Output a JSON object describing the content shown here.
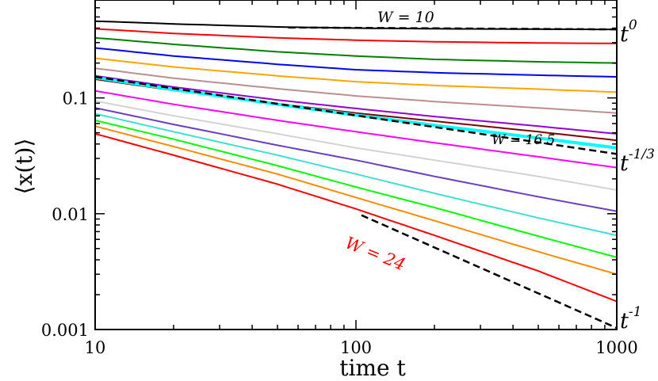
{
  "chart_data": {
    "type": "line",
    "xscale": "log",
    "yscale": "log",
    "xlim": [
      10,
      1000
    ],
    "ylim": [
      0.001,
      0.7
    ],
    "xlabel": "time t",
    "ylabel": "⟨x(t)⟩",
    "x_ticks": [
      {
        "value": 10,
        "label": "10"
      },
      {
        "value": 100,
        "label": "100"
      },
      {
        "value": 1000,
        "label": "1000"
      }
    ],
    "y_ticks": [
      {
        "value": 0.001,
        "label": "0.001"
      },
      {
        "value": 0.01,
        "label": "0.01"
      },
      {
        "value": 0.1,
        "label": "0.1"
      }
    ],
    "x": [
      10,
      20,
      50,
      100,
      200,
      500,
      1000
    ],
    "series": [
      {
        "color": "#000000",
        "values": [
          0.46,
          0.435,
          0.41,
          0.4,
          0.395,
          0.392,
          0.39
        ]
      },
      {
        "color": "#ff0000",
        "values": [
          0.395,
          0.36,
          0.33,
          0.315,
          0.305,
          0.298,
          0.295
        ]
      },
      {
        "color": "#008000",
        "values": [
          0.33,
          0.29,
          0.25,
          0.23,
          0.215,
          0.205,
          0.2
        ]
      },
      {
        "color": "#0000ff",
        "values": [
          0.27,
          0.23,
          0.195,
          0.175,
          0.165,
          0.157,
          0.152
        ]
      },
      {
        "color": "#ffa500",
        "values": [
          0.22,
          0.185,
          0.155,
          0.138,
          0.128,
          0.119,
          0.112
        ]
      },
      {
        "color": "#bc8f8f",
        "values": [
          0.18,
          0.148,
          0.12,
          0.104,
          0.093,
          0.082,
          0.074
        ]
      },
      {
        "color": "#9400d3",
        "values": [
          0.155,
          0.124,
          0.096,
          0.081,
          0.069,
          0.057,
          0.049
        ]
      },
      {
        "color": "#800000",
        "values": [
          0.145,
          0.116,
          0.089,
          0.074,
          0.063,
          0.051,
          0.043
        ]
      },
      {
        "color": "#00ffff",
        "values": [
          0.15,
          0.118,
          0.088,
          0.071,
          0.058,
          0.045,
          0.037
        ]
      },
      {
        "color": "#ff00ff",
        "values": [
          0.115,
          0.088,
          0.064,
          0.051,
          0.041,
          0.031,
          0.025
        ]
      },
      {
        "color": "#d3d3d3",
        "values": [
          0.094,
          0.07,
          0.049,
          0.037,
          0.029,
          0.021,
          0.016
        ]
      },
      {
        "color": "#6a3fbf",
        "values": [
          0.082,
          0.059,
          0.039,
          0.029,
          0.021,
          0.014,
          0.0105
        ]
      },
      {
        "color": "#40e0d0",
        "values": [
          0.073,
          0.051,
          0.032,
          0.022,
          0.015,
          0.0092,
          0.0065
        ]
      },
      {
        "color": "#00ff00",
        "values": [
          0.064,
          0.044,
          0.026,
          0.017,
          0.0113,
          0.0064,
          0.0042
        ]
      },
      {
        "color": "#ff8c00",
        "values": [
          0.057,
          0.038,
          0.022,
          0.0138,
          0.0087,
          0.0047,
          0.003
        ]
      },
      {
        "color": "#ff0000",
        "values": [
          0.049,
          0.032,
          0.018,
          0.011,
          0.0065,
          0.0032,
          0.00175
        ]
      }
    ],
    "guide_lines": [
      {
        "x": [
          55,
          1000
        ],
        "y": [
          0.405,
          0.39
        ]
      },
      {
        "x": [
          10,
          1000
        ],
        "y": [
          0.152,
          0.0328
        ]
      },
      {
        "x": [
          105,
          1000
        ],
        "y": [
          0.0097,
          0.00103
        ]
      }
    ],
    "annotations": [
      {
        "text": "W = 10",
        "color": "#000000"
      },
      {
        "text": "W = 16.5",
        "color": "#000000"
      },
      {
        "text": "W = 24",
        "color": "#ff0000"
      },
      {
        "text": "t",
        "sup": "0",
        "color": "#000000"
      },
      {
        "text": "t",
        "sup": "-1/3",
        "color": "#000000"
      },
      {
        "text": "t",
        "sup": "-1",
        "color": "#000000"
      }
    ]
  }
}
